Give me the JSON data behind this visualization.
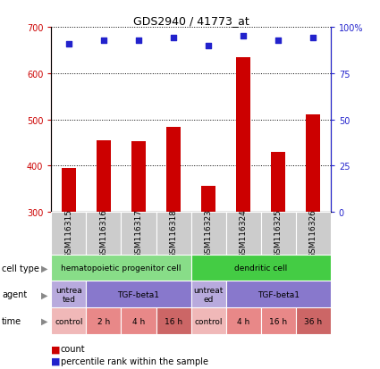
{
  "title": "GDS2940 / 41773_at",
  "samples": [
    "GSM116315",
    "GSM116316",
    "GSM116317",
    "GSM116318",
    "GSM116323",
    "GSM116324",
    "GSM116325",
    "GSM116326"
  ],
  "counts": [
    395,
    455,
    452,
    483,
    357,
    635,
    430,
    510
  ],
  "percentiles": [
    91,
    93,
    93,
    94,
    90,
    95,
    93,
    94
  ],
  "ylim_left": [
    300,
    700
  ],
  "ylim_right": [
    0,
    100
  ],
  "yticks_left": [
    300,
    400,
    500,
    600,
    700
  ],
  "yticks_right": [
    0,
    25,
    50,
    75,
    100
  ],
  "ytick_labels_right": [
    "0",
    "25",
    "50",
    "75",
    "100%"
  ],
  "bar_color": "#CC0000",
  "dot_color": "#2222CC",
  "cell_type_row": {
    "label": "cell type",
    "groups": [
      {
        "text": "hematopoietic progenitor cell",
        "span": [
          0,
          4
        ],
        "color": "#88DD88"
      },
      {
        "text": "dendritic cell",
        "span": [
          4,
          8
        ],
        "color": "#44CC44"
      }
    ]
  },
  "agent_row": {
    "label": "agent",
    "groups": [
      {
        "text": "untrea\nted",
        "span": [
          0,
          1
        ],
        "color": "#B8AADD"
      },
      {
        "text": "TGF-beta1",
        "span": [
          1,
          4
        ],
        "color": "#8878CC"
      },
      {
        "text": "untreat\ned",
        "span": [
          4,
          5
        ],
        "color": "#B8AADD"
      },
      {
        "text": "TGF-beta1",
        "span": [
          5,
          8
        ],
        "color": "#8878CC"
      }
    ]
  },
  "time_row": {
    "label": "time",
    "groups": [
      {
        "text": "control",
        "span": [
          0,
          1
        ],
        "color": "#F0B8B8"
      },
      {
        "text": "2 h",
        "span": [
          1,
          2
        ],
        "color": "#E88888"
      },
      {
        "text": "4 h",
        "span": [
          2,
          3
        ],
        "color": "#E88888"
      },
      {
        "text": "16 h",
        "span": [
          3,
          4
        ],
        "color": "#CC6666"
      },
      {
        "text": "control",
        "span": [
          4,
          5
        ],
        "color": "#F0B8B8"
      },
      {
        "text": "4 h",
        "span": [
          5,
          6
        ],
        "color": "#E88888"
      },
      {
        "text": "16 h",
        "span": [
          6,
          7
        ],
        "color": "#E88888"
      },
      {
        "text": "36 h",
        "span": [
          7,
          8
        ],
        "color": "#CC6666"
      }
    ]
  },
  "legend": [
    {
      "color": "#CC0000",
      "label": "count"
    },
    {
      "color": "#2222CC",
      "label": "percentile rank within the sample"
    }
  ],
  "bg_color": "#FFFFFF",
  "sample_area_color": "#CCCCCC"
}
